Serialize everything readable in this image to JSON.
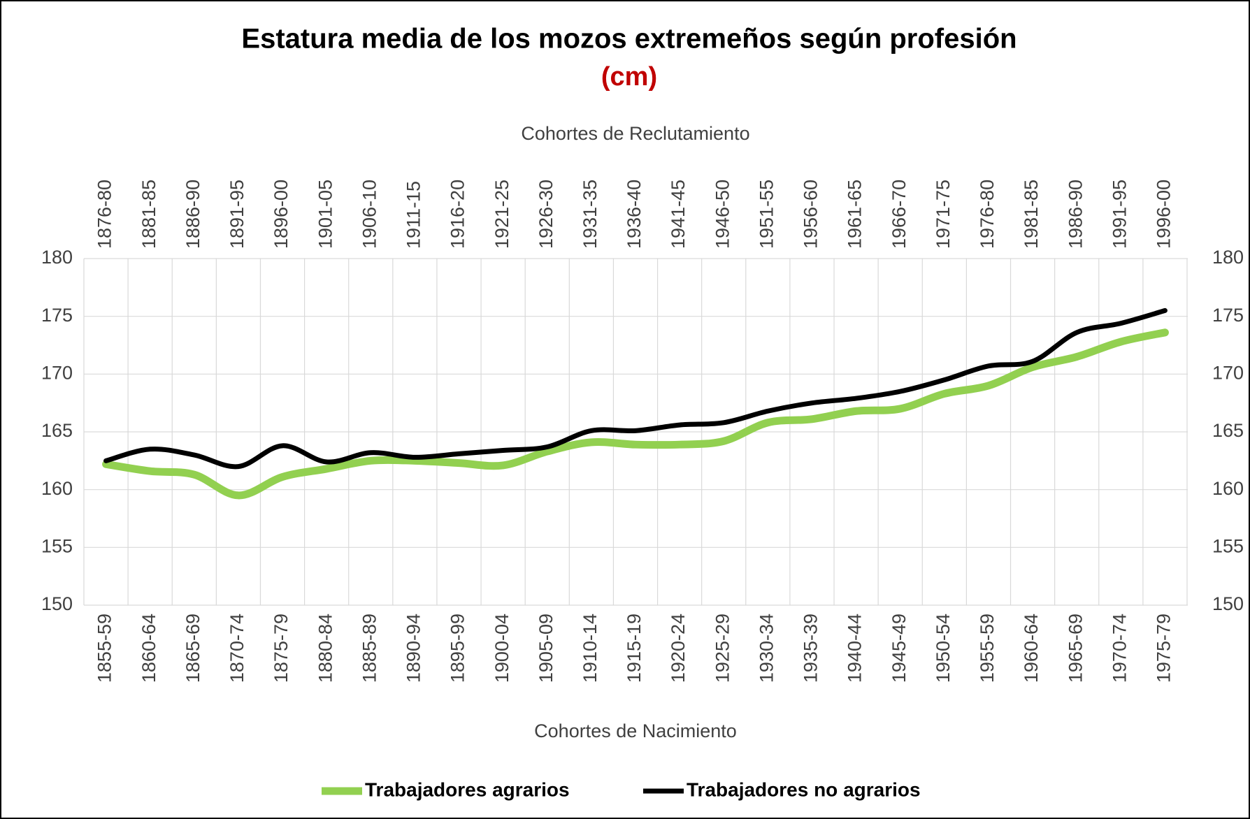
{
  "chart_data": {
    "type": "line",
    "title": "Estatura media de los mozos extremeños según profesión",
    "subtitle": "(cm)",
    "x_label": "Cohortes de Nacimiento",
    "x2_label": "Cohortes de Reclutamiento",
    "categories": [
      "1855-59",
      "1860-64",
      "1865-69",
      "1870-74",
      "1875-79",
      "1880-84",
      "1885-89",
      "1890-94",
      "1895-99",
      "1900-04",
      "1905-09",
      "1910-14",
      "1915-19",
      "1920-24",
      "1925-29",
      "1930-34",
      "1935-39",
      "1940-44",
      "1945-49",
      "1950-54",
      "1955-59",
      "1960-64",
      "1965-69",
      "1970-74",
      "1975-79"
    ],
    "top_categories": [
      "1876-80",
      "1881-85",
      "1886-90",
      "1891-95",
      "1896-00",
      "1901-05",
      "1906-10",
      "1911-15",
      "1916-20",
      "1921-25",
      "1926-30",
      "1931-35",
      "1936-40",
      "1941-45",
      "1946-50",
      "1951-55",
      "1956-60",
      "1961-65",
      "1966-70",
      "1971-75",
      "1976-80",
      "1981-85",
      "1986-90",
      "1991-95",
      "1996-00"
    ],
    "series": [
      {
        "name": "Trabajadores agrarios",
        "color": "#92d050",
        "values": [
          162.2,
          161.6,
          161.3,
          159.5,
          161.1,
          161.8,
          162.5,
          162.5,
          162.3,
          162.1,
          163.3,
          164.1,
          163.9,
          163.9,
          164.2,
          165.8,
          166.1,
          166.8,
          167.0,
          168.3,
          169.0,
          170.6,
          171.5,
          172.8,
          173.6
        ]
      },
      {
        "name": "Trabajadores no agrarios",
        "color": "#000000",
        "values": [
          162.5,
          163.5,
          163.0,
          162.0,
          163.8,
          162.4,
          163.2,
          162.8,
          163.1,
          163.4,
          163.7,
          165.1,
          165.1,
          165.6,
          165.8,
          166.8,
          167.5,
          167.9,
          168.5,
          169.5,
          170.7,
          171.1,
          173.6,
          174.4,
          175.5
        ]
      }
    ],
    "ylim": [
      150,
      180
    ],
    "yticks": [
      150,
      155,
      160,
      165,
      170,
      175,
      180
    ],
    "y2lim": [
      150,
      180
    ],
    "y2ticks": [
      150,
      155,
      160,
      165,
      170,
      175,
      180
    ],
    "grid": true,
    "legend": "bottom"
  }
}
